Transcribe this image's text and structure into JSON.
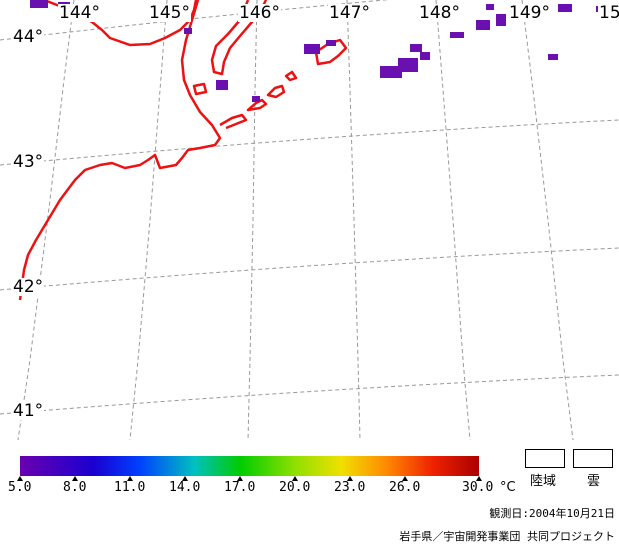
{
  "map": {
    "longitude_labels": [
      "144°",
      "145°",
      "146°",
      "147°",
      "148°",
      "149°",
      "15"
    ],
    "latitude_labels": [
      "44°",
      "43°",
      "42°",
      "41°"
    ],
    "coastline_color": "#ee1111",
    "grid_color": "#999999"
  },
  "colorbar": {
    "ticks": [
      "5.0",
      "8.0",
      "11.0",
      "14.0",
      "17.0",
      "20.0",
      "23.0",
      "26.0",
      "30.0"
    ],
    "unit": "°C",
    "range": [
      5.0,
      30.0
    ]
  },
  "legend": {
    "land_label": "陸域",
    "cloud_label": "雲"
  },
  "footer": {
    "observation_date": "観測日:2004年10月21日",
    "credit": "岩手県／宇宙開発事業団 共同プロジェクト"
  }
}
